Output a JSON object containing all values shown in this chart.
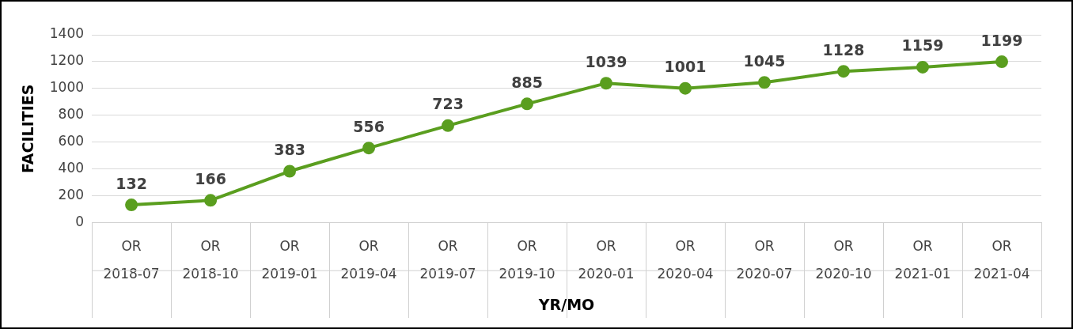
{
  "chart_data": {
    "type": "line",
    "xlabel": "YR/MO",
    "ylabel": "FACILITIES",
    "categories": [
      "OR\n2018-07",
      "OR\n2018-10",
      "OR\n2019-01",
      "OR\n2019-04",
      "OR\n2019-07",
      "OR\n2019-10",
      "OR\n2020-01",
      "OR\n2020-04",
      "OR\n2020-07",
      "OR\n2020-10",
      "OR\n2021-01",
      "OR\n2021-04"
    ],
    "series": [
      {
        "color": "#5a9e1f",
        "values": [
          132,
          166,
          383,
          556,
          723,
          885,
          1039,
          1001,
          1045,
          1128,
          1159,
          1199
        ]
      }
    ],
    "ylim": [
      0,
      1400
    ],
    "yticks": [
      0,
      200,
      400,
      600,
      800,
      1000,
      1200,
      1400
    ],
    "grid": "y",
    "marker": "circle",
    "line_style": "solid",
    "data_labels": true,
    "legend": false
  }
}
